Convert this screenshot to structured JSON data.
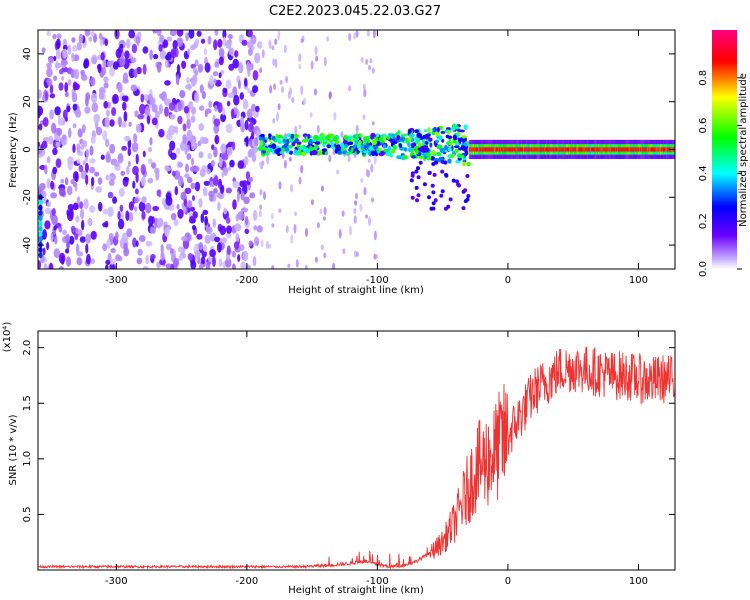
{
  "title": "C2E2.2023.045.22.03.G27",
  "chart_data": [
    {
      "type": "heatmap",
      "xlabel": "Height of straight line (km)",
      "ylabel": "Frequency (Hz)",
      "xlim": [
        -360,
        128
      ],
      "ylim": [
        -50,
        50
      ],
      "xticks": [
        -300,
        -200,
        -100,
        0,
        100
      ],
      "yticks": [
        -40,
        -20,
        0,
        20,
        40
      ],
      "colorbar": {
        "label": "Normalized spectral amplitude",
        "range": [
          0.0,
          1.0
        ],
        "ticks": [
          0.0,
          0.2,
          0.4,
          0.6,
          0.8
        ],
        "colors": [
          "#ffffff",
          "#c9b2ff",
          "#6a00ff",
          "#0000ff",
          "#00ffff",
          "#00ff00",
          "#ffff00",
          "#ff0000",
          "#ff0080"
        ]
      },
      "regions": [
        {
          "x": [
            -360,
            -190
          ],
          "y": [
            -50,
            50
          ],
          "amplitude": 0.1,
          "pattern": "scattered noise"
        },
        {
          "x": [
            -190,
            -155
          ],
          "y": [
            -50,
            50
          ],
          "amplitude": 0.05,
          "pattern": "sparse noise"
        },
        {
          "x": [
            -190,
            -30
          ],
          "y": [
            -3,
            6
          ],
          "amplitude": 0.4,
          "pattern": "band"
        },
        {
          "x": [
            -30,
            128
          ],
          "y": [
            -2,
            2
          ],
          "amplitude": 0.9,
          "pattern": "band"
        }
      ],
      "grid": false
    },
    {
      "type": "line",
      "xlabel": "Height of straight line (km)",
      "ylabel": "SNR (10 * v/v)",
      "multiplier": "(x10⁴)",
      "xlim": [
        -360,
        128
      ],
      "ylim": [
        0,
        2.15
      ],
      "xticks": [
        -300,
        -200,
        -100,
        0,
        100
      ],
      "yticks": [
        0.5,
        1.0,
        1.5,
        2.0
      ],
      "series": [
        {
          "color": "#ee3333",
          "x": [
            -360,
            -300,
            -250,
            -200,
            -160,
            -140,
            -120,
            -110,
            -100,
            -90,
            -80,
            -70,
            -60,
            -50,
            -45,
            -40,
            -35,
            -30,
            -25,
            -20,
            -15,
            -10,
            -5,
            0,
            5,
            10,
            15,
            20,
            30,
            40,
            50,
            60,
            70,
            80,
            90,
            100,
            110,
            120,
            128
          ],
          "values": [
            0.03,
            0.03,
            0.03,
            0.03,
            0.03,
            0.04,
            0.06,
            0.08,
            0.05,
            0.03,
            0.04,
            0.08,
            0.15,
            0.25,
            0.35,
            0.45,
            0.6,
            0.75,
            0.9,
            0.95,
            1.0,
            1.05,
            1.15,
            1.2,
            1.3,
            1.4,
            1.5,
            1.6,
            1.7,
            1.8,
            1.82,
            1.8,
            1.78,
            1.75,
            1.75,
            1.72,
            1.7,
            1.72,
            1.7
          ],
          "noise": "high-frequency spikes"
        }
      ],
      "grid": false
    }
  ]
}
